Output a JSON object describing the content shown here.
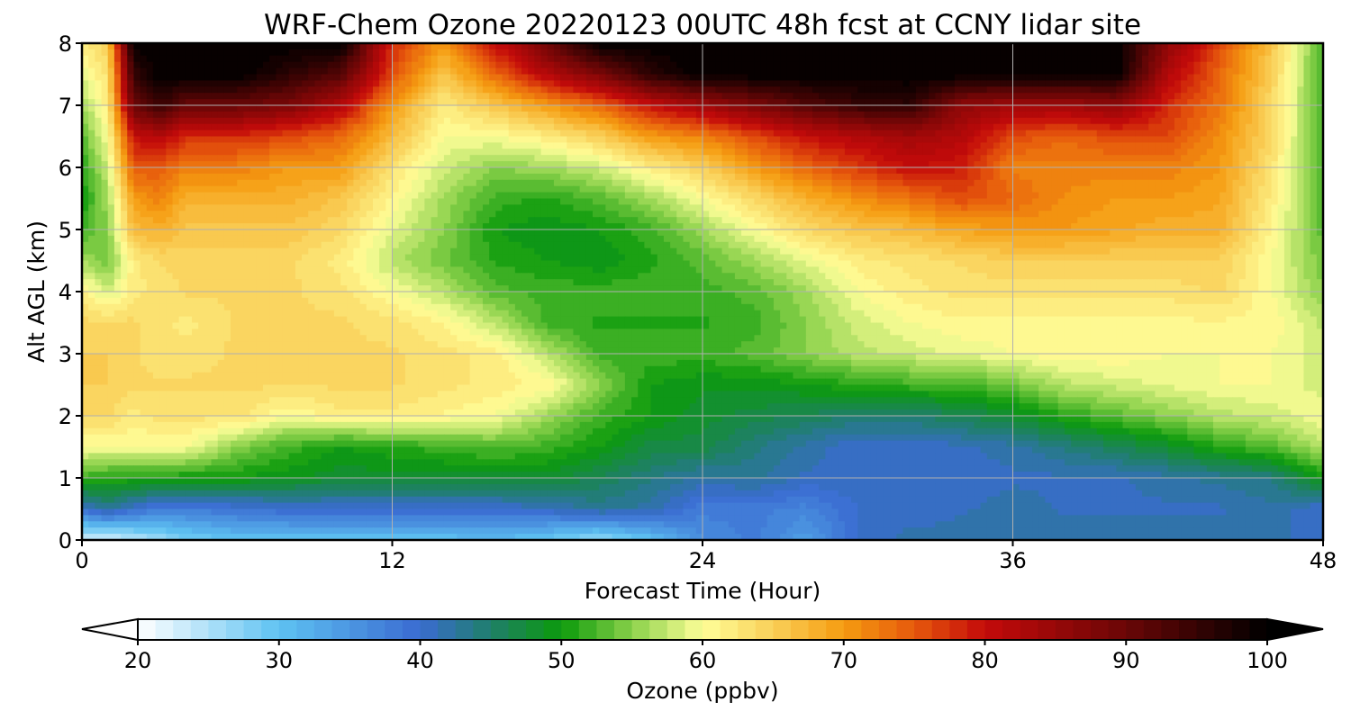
{
  "chart_data": {
    "type": "heatmap",
    "title": "WRF-Chem Ozone  20220123 00UTC 48h fcst at CCNY lidar site",
    "xlabel": "Forecast Time (Hour)",
    "ylabel": "Alt AGL (km)",
    "xlim": [
      0,
      48
    ],
    "ylim": [
      0,
      8
    ],
    "xticks": [
      "0",
      "12",
      "24",
      "36",
      "48"
    ],
    "yticks": [
      "0",
      "1",
      "2",
      "3",
      "4",
      "5",
      "6",
      "7",
      "8"
    ],
    "grid": true,
    "colorbar": {
      "label": "Ozone  (ppbv)",
      "min": 20,
      "max": 100,
      "extend": "both",
      "ticks": [
        "20",
        "30",
        "40",
        "50",
        "60",
        "70",
        "80",
        "90",
        "100"
      ],
      "colors": [
        {
          "value": 20,
          "color": "#ffffff"
        },
        {
          "value": 30,
          "color": "#5ec2f2"
        },
        {
          "value": 40,
          "color": "#3a6bd1"
        },
        {
          "value": 45,
          "color": "#1f7f6a"
        },
        {
          "value": 50,
          "color": "#0b9a0b"
        },
        {
          "value": 55,
          "color": "#8ad14a"
        },
        {
          "value": 60,
          "color": "#ffff99"
        },
        {
          "value": 65,
          "color": "#f9cf58"
        },
        {
          "value": 70,
          "color": "#f59b10"
        },
        {
          "value": 75,
          "color": "#e6590c"
        },
        {
          "value": 80,
          "color": "#c40a0a"
        },
        {
          "value": 90,
          "color": "#6a0606"
        },
        {
          "value": 100,
          "color": "#000000"
        }
      ]
    },
    "times": [
      0,
      1,
      2,
      3,
      4,
      6,
      8,
      10,
      12,
      14,
      16,
      18,
      20,
      22,
      24,
      26,
      28,
      30,
      32,
      34,
      36,
      38,
      40,
      42,
      44,
      46,
      48
    ],
    "altitudes": [
      0,
      0.5,
      1,
      1.5,
      2,
      2.5,
      3,
      3.5,
      4,
      4.5,
      5,
      5.5,
      6,
      6.5,
      7,
      7.5,
      8
    ],
    "values": [
      [
        22,
        22,
        24,
        26,
        28,
        30,
        30,
        30,
        30,
        30,
        31,
        29,
        26,
        30,
        36,
        38,
        34,
        40,
        42,
        42,
        42,
        42,
        42,
        42,
        42,
        42,
        40
      ],
      [
        40,
        43,
        40,
        38,
        38,
        39,
        40,
        40,
        40,
        40,
        40,
        41,
        43,
        42,
        38,
        38,
        37,
        40,
        40,
        41,
        42,
        41,
        41,
        41,
        41,
        42,
        40
      ],
      [
        52,
        51,
        51,
        51,
        50,
        50,
        49,
        48,
        48,
        48,
        48,
        48,
        46,
        44,
        42,
        43,
        41,
        41,
        40,
        40,
        41,
        41,
        41,
        42,
        43,
        44,
        50
      ],
      [
        60,
        60,
        60,
        60,
        60,
        55,
        52,
        50,
        51,
        52,
        53,
        52,
        50,
        47,
        47,
        44,
        42,
        40,
        40,
        41,
        42,
        44,
        46,
        48,
        51,
        53,
        57
      ],
      [
        64,
        64,
        62,
        63,
        63,
        63,
        60,
        62,
        62,
        61,
        60,
        56,
        52,
        50,
        48,
        47,
        46,
        45,
        45,
        46,
        48,
        51,
        53,
        55,
        57,
        58,
        60
      ],
      [
        65,
        65,
        64,
        64,
        64,
        64,
        64,
        64,
        64,
        63,
        62,
        61,
        55,
        50,
        49,
        49,
        50,
        51,
        52,
        52,
        54,
        57,
        58,
        59,
        60,
        60,
        58
      ],
      [
        65,
        65,
        64,
        63,
        63,
        64,
        64,
        64,
        64,
        63,
        62,
        57,
        52,
        52,
        52,
        53,
        55,
        57,
        58,
        59,
        60,
        61,
        61,
        60,
        60,
        60,
        58
      ],
      [
        64,
        64,
        64,
        63,
        62,
        64,
        64,
        64,
        63,
        61,
        57,
        52,
        51,
        51,
        51,
        52,
        55,
        58,
        60,
        61,
        61,
        61,
        61,
        61,
        61,
        61,
        57
      ],
      [
        62,
        58,
        62,
        63,
        64,
        64,
        64,
        63,
        60,
        57,
        53,
        52,
        52,
        52,
        52,
        53,
        56,
        60,
        62,
        63,
        63,
        63,
        63,
        63,
        64,
        60,
        55
      ],
      [
        56,
        54,
        62,
        64,
        64,
        64,
        64,
        62,
        57,
        54,
        51,
        50,
        49,
        51,
        53,
        56,
        59,
        62,
        63,
        64,
        65,
        65,
        65,
        65,
        65,
        60,
        54
      ],
      [
        52,
        55,
        67,
        68,
        66,
        66,
        66,
        64,
        59,
        55,
        50,
        49,
        50,
        52,
        56,
        60,
        64,
        66,
        67,
        69,
        70,
        70,
        69,
        68,
        68,
        61,
        53
      ],
      [
        50,
        56,
        70,
        72,
        68,
        68,
        68,
        66,
        61,
        56,
        52,
        51,
        53,
        56,
        60,
        64,
        68,
        71,
        73,
        76,
        74,
        71,
        70,
        70,
        69,
        62,
        52
      ],
      [
        51,
        58,
        75,
        75,
        72,
        72,
        70,
        70,
        63,
        58,
        55,
        56,
        58,
        62,
        65,
        70,
        74,
        77,
        80,
        79,
        72,
        72,
        72,
        72,
        70,
        63,
        52
      ],
      [
        53,
        60,
        80,
        82,
        78,
        78,
        76,
        74,
        67,
        60,
        60,
        62,
        65,
        70,
        72,
        76,
        80,
        82,
        84,
        82,
        76,
        74,
        76,
        76,
        71,
        64,
        52
      ],
      [
        56,
        62,
        90,
        95,
        90,
        90,
        88,
        82,
        70,
        62,
        66,
        70,
        74,
        80,
        84,
        88,
        92,
        95,
        96,
        86,
        84,
        84,
        86,
        78,
        73,
        64,
        52
      ],
      [
        59,
        63,
        95,
        100,
        100,
        100,
        96,
        92,
        76,
        66,
        74,
        82,
        88,
        96,
        100,
        100,
        100,
        100,
        100,
        100,
        100,
        100,
        100,
        82,
        74,
        65,
        52
      ],
      [
        62,
        65,
        100,
        100,
        100,
        100,
        100,
        100,
        78,
        70,
        80,
        90,
        100,
        100,
        100,
        100,
        100,
        100,
        100,
        100,
        100,
        100,
        100,
        86,
        76,
        66,
        52
      ]
    ]
  }
}
